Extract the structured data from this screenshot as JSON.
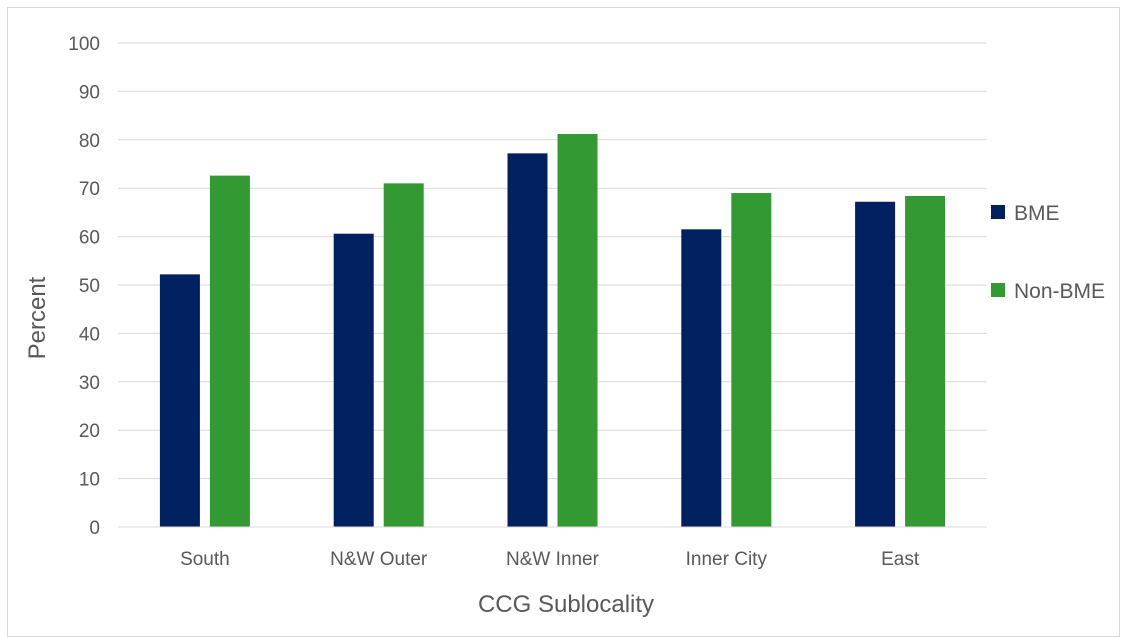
{
  "chart_data": {
    "type": "bar",
    "title": "",
    "xlabel": "CCG Sublocality",
    "ylabel": "Percent",
    "ylim": [
      0,
      100
    ],
    "yticks": [
      0,
      10,
      20,
      30,
      40,
      50,
      60,
      70,
      80,
      90,
      100
    ],
    "grid": true,
    "legend_position": "right",
    "categories": [
      "South",
      "N&W Outer",
      "N&W Inner",
      "Inner City",
      "East"
    ],
    "series": [
      {
        "name": "BME",
        "color": "#002060",
        "values": [
          52.2,
          60.6,
          77.2,
          61.5,
          67.2
        ]
      },
      {
        "name": "Non-BME",
        "color": "#339933",
        "values": [
          72.6,
          71.0,
          81.2,
          69.0,
          68.4
        ]
      }
    ]
  }
}
